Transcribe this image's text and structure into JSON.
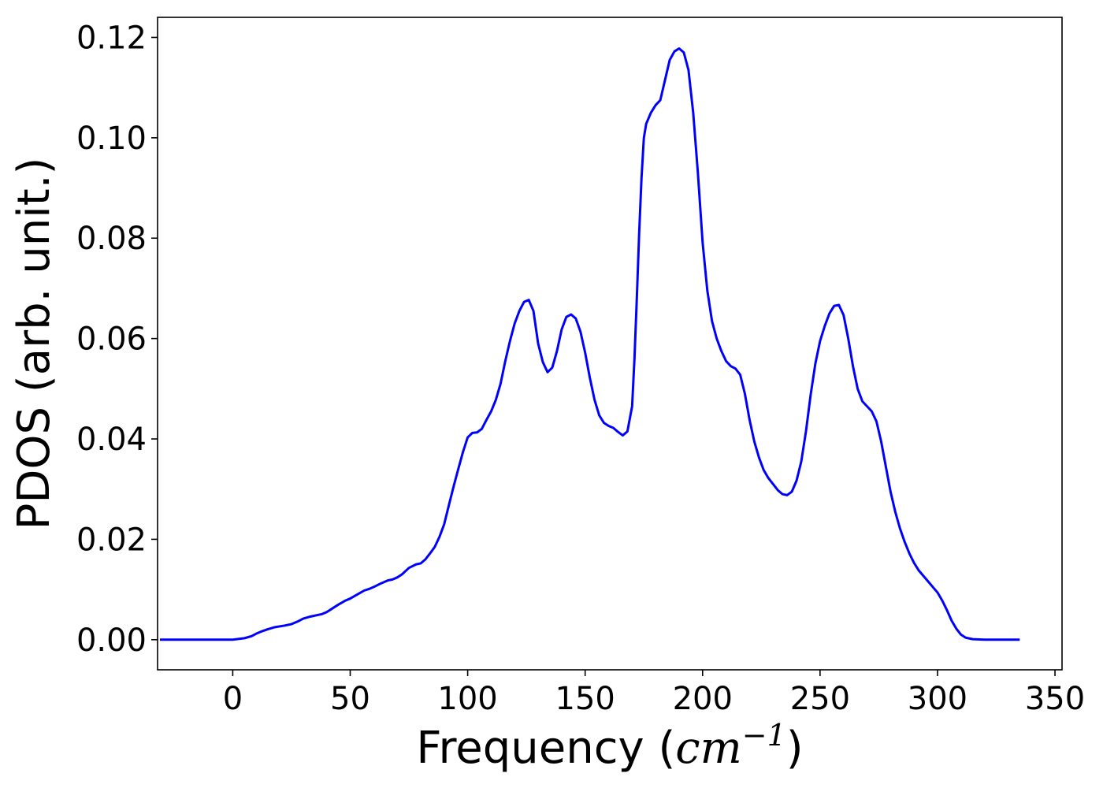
{
  "chart_data": {
    "type": "line",
    "title": "",
    "xlabel": "Frequency",
    "xlabel_unit": {
      "open": "(",
      "base": "cm",
      "sup": "−1",
      "close": ")"
    },
    "ylabel": "PDOS (arb. unit.)",
    "xlim": [
      -32,
      353
    ],
    "ylim": [
      -0.006,
      0.124
    ],
    "xticks": [
      0,
      50,
      100,
      150,
      200,
      250,
      300,
      350
    ],
    "yticks": [
      0.0,
      0.02,
      0.04,
      0.06,
      0.08,
      0.1,
      0.12
    ],
    "ytick_decimals": 2,
    "grid": false,
    "legend": "none",
    "series": [
      {
        "color": "#0000ff",
        "x": [
          -31,
          -20,
          -10,
          0,
          5,
          8,
          10,
          12,
          15,
          18,
          22,
          25,
          28,
          30,
          33,
          36,
          38,
          40,
          42,
          45,
          48,
          50,
          53,
          56,
          58,
          60,
          63,
          66,
          68,
          70,
          72,
          75,
          78,
          80,
          82,
          84,
          86,
          88,
          90,
          92,
          94,
          96,
          98,
          100,
          102,
          104,
          106,
          108,
          110,
          112,
          114,
          116,
          118,
          120,
          122,
          124,
          126,
          128,
          130,
          132,
          134,
          136,
          138,
          140,
          142,
          144,
          146,
          148,
          150,
          152,
          154,
          156,
          158,
          160,
          162,
          164,
          166,
          168,
          170,
          171,
          172,
          173,
          174,
          175,
          176,
          178,
          180,
          182,
          184,
          186,
          188,
          190,
          192,
          194,
          196,
          198,
          200,
          202,
          204,
          206,
          208,
          210,
          212,
          214,
          216,
          218,
          220,
          222,
          224,
          226,
          228,
          230,
          232,
          234,
          236,
          238,
          240,
          242,
          244,
          246,
          248,
          250,
          252,
          254,
          256,
          258,
          260,
          262,
          264,
          266,
          268,
          270,
          272,
          274,
          276,
          278,
          280,
          282,
          284,
          286,
          288,
          290,
          292,
          294,
          296,
          298,
          300,
          302,
          304,
          306,
          308,
          310,
          312,
          315,
          320,
          335
        ],
        "y": [
          0.0,
          0.0,
          0.0,
          0.0,
          0.0003,
          0.0007,
          0.0012,
          0.0016,
          0.0021,
          0.0025,
          0.0028,
          0.0031,
          0.0037,
          0.0042,
          0.0046,
          0.0049,
          0.0051,
          0.0055,
          0.0061,
          0.007,
          0.0078,
          0.0082,
          0.009,
          0.0098,
          0.0101,
          0.0105,
          0.0112,
          0.0118,
          0.012,
          0.0124,
          0.013,
          0.0143,
          0.015,
          0.0152,
          0.016,
          0.0172,
          0.0185,
          0.0205,
          0.023,
          0.0268,
          0.0305,
          0.034,
          0.0374,
          0.0403,
          0.0412,
          0.0413,
          0.042,
          0.0438,
          0.0455,
          0.0478,
          0.051,
          0.0555,
          0.0595,
          0.063,
          0.0655,
          0.0673,
          0.0677,
          0.0655,
          0.059,
          0.0553,
          0.0533,
          0.0542,
          0.0575,
          0.0618,
          0.0643,
          0.0648,
          0.064,
          0.0614,
          0.0572,
          0.0522,
          0.0478,
          0.0447,
          0.0432,
          0.0426,
          0.0422,
          0.0414,
          0.0407,
          0.0415,
          0.0465,
          0.056,
          0.068,
          0.081,
          0.092,
          0.1,
          0.1028,
          0.105,
          0.1065,
          0.1075,
          0.1115,
          0.1155,
          0.1172,
          0.1178,
          0.117,
          0.1135,
          0.105,
          0.093,
          0.0792,
          0.0696,
          0.0635,
          0.06,
          0.0575,
          0.0555,
          0.0545,
          0.054,
          0.0528,
          0.049,
          0.0438,
          0.0395,
          0.0363,
          0.0338,
          0.0322,
          0.031,
          0.0298,
          0.029,
          0.0288,
          0.0295,
          0.0317,
          0.0355,
          0.0415,
          0.0488,
          0.055,
          0.0595,
          0.0625,
          0.065,
          0.0665,
          0.0667,
          0.0647,
          0.06,
          0.0545,
          0.05,
          0.0475,
          0.0465,
          0.0455,
          0.0435,
          0.0395,
          0.0345,
          0.0295,
          0.0255,
          0.0222,
          0.0195,
          0.0172,
          0.0153,
          0.0138,
          0.0127,
          0.0116,
          0.0105,
          0.0094,
          0.0078,
          0.0059,
          0.0038,
          0.0022,
          0.001,
          0.0004,
          0.0001,
          0.0,
          0.0
        ]
      }
    ]
  }
}
